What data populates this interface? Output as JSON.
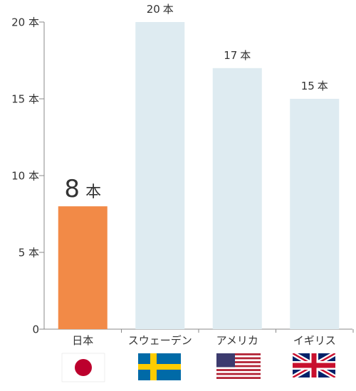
{
  "chart_data": {
    "type": "bar",
    "categories": [
      "日本",
      "スウェーデン",
      "アメリカ",
      "イギリス"
    ],
    "values": [
      8,
      20,
      17,
      15
    ],
    "unit": "本",
    "ylim": [
      0,
      20
    ],
    "yticks": [
      {
        "value": 0,
        "label": "0"
      },
      {
        "value": 5,
        "label": "5 本"
      },
      {
        "value": 10,
        "label": "10 本"
      },
      {
        "value": 15,
        "label": "15 本"
      },
      {
        "value": 20,
        "label": "20 本"
      }
    ],
    "data_labels": [
      "8",
      "20",
      "17",
      "15"
    ],
    "highlight_index": 0,
    "colors": {
      "highlight": "#f28a47",
      "bar": "#deebf1",
      "axis": "#888888",
      "text": "#333333"
    },
    "flags": [
      "japan-flag",
      "sweden-flag",
      "usa-flag",
      "uk-flag"
    ]
  }
}
